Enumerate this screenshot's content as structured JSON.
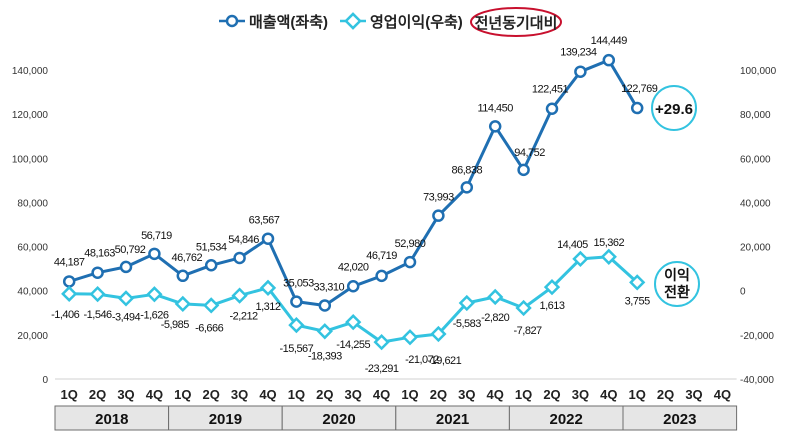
{
  "chart_data": {
    "type": "line",
    "title": "",
    "legend": {
      "position": "top",
      "items": [
        "매출액(좌축)",
        "영업이익(우축)"
      ],
      "highlight": "전년동기대비"
    },
    "quarters": [
      "1Q",
      "2Q",
      "3Q",
      "4Q",
      "1Q",
      "2Q",
      "3Q",
      "4Q",
      "1Q",
      "2Q",
      "3Q",
      "4Q",
      "1Q",
      "2Q",
      "3Q",
      "4Q",
      "1Q",
      "2Q",
      "3Q",
      "4Q",
      "1Q",
      "2Q",
      "3Q",
      "4Q"
    ],
    "years": [
      "2018",
      "2019",
      "2020",
      "2021",
      "2022",
      "2023"
    ],
    "left_axis": {
      "min": 0,
      "max": 140000,
      "ticks": [
        "0",
        "20,000",
        "40,000",
        "60,000",
        "80,000",
        "100,000",
        "120,000",
        "140,000"
      ]
    },
    "right_axis": {
      "min": -40000,
      "max": 100000,
      "ticks": [
        "-40,000",
        "-20,000",
        "0",
        "20,000",
        "40,000",
        "60,000",
        "80,000",
        "100,000"
      ]
    },
    "series": [
      {
        "name": "매출액(좌축)",
        "axis": "left",
        "color": "#1f6fb2",
        "values": [
          44187,
          48163,
          50792,
          56719,
          46762,
          51534,
          54846,
          63567,
          35053,
          33310,
          42020,
          46719,
          52980,
          73993,
          86838,
          114450,
          94752,
          122451,
          139234,
          144449,
          122769
        ],
        "labels": [
          "44,187",
          "48,163",
          "50,792",
          "56,719",
          "46,762",
          "51,534",
          "54,846",
          "63,567",
          "35,053",
          "33,310",
          "42,020",
          "46,719",
          "52,980",
          "73,993",
          "86,838",
          "114,450",
          "94,752",
          "122,451",
          "139,234",
          "144,449",
          "122,769"
        ]
      },
      {
        "name": "영업이익(우축)",
        "axis": "right",
        "color": "#33c3e0",
        "values": [
          -1406,
          -1546,
          -3494,
          -1626,
          -5985,
          -6666,
          -2212,
          1312,
          -15567,
          -18393,
          -14255,
          -23291,
          -21072,
          -19621,
          -5583,
          -2820,
          -7827,
          1613,
          14405,
          15362,
          3755
        ],
        "labels": [
          "-1,406",
          "-1,546",
          "-3,494",
          "-1,626",
          "-5,985",
          "-6,666",
          "-2,212",
          "1,312",
          "-15,567",
          "-18,393",
          "-14,255",
          "-23,291",
          "-21,072",
          "-19,621",
          "-5,583",
          "-2,820",
          "-7,827",
          "1,613",
          "14,405",
          "15,362",
          "3,755"
        ]
      }
    ],
    "annotations": [
      {
        "text": "+29.6",
        "target": "매출액(좌축)"
      },
      {
        "text": "이익",
        "text2": "전환",
        "target": "영업이익(우축)"
      }
    ]
  }
}
